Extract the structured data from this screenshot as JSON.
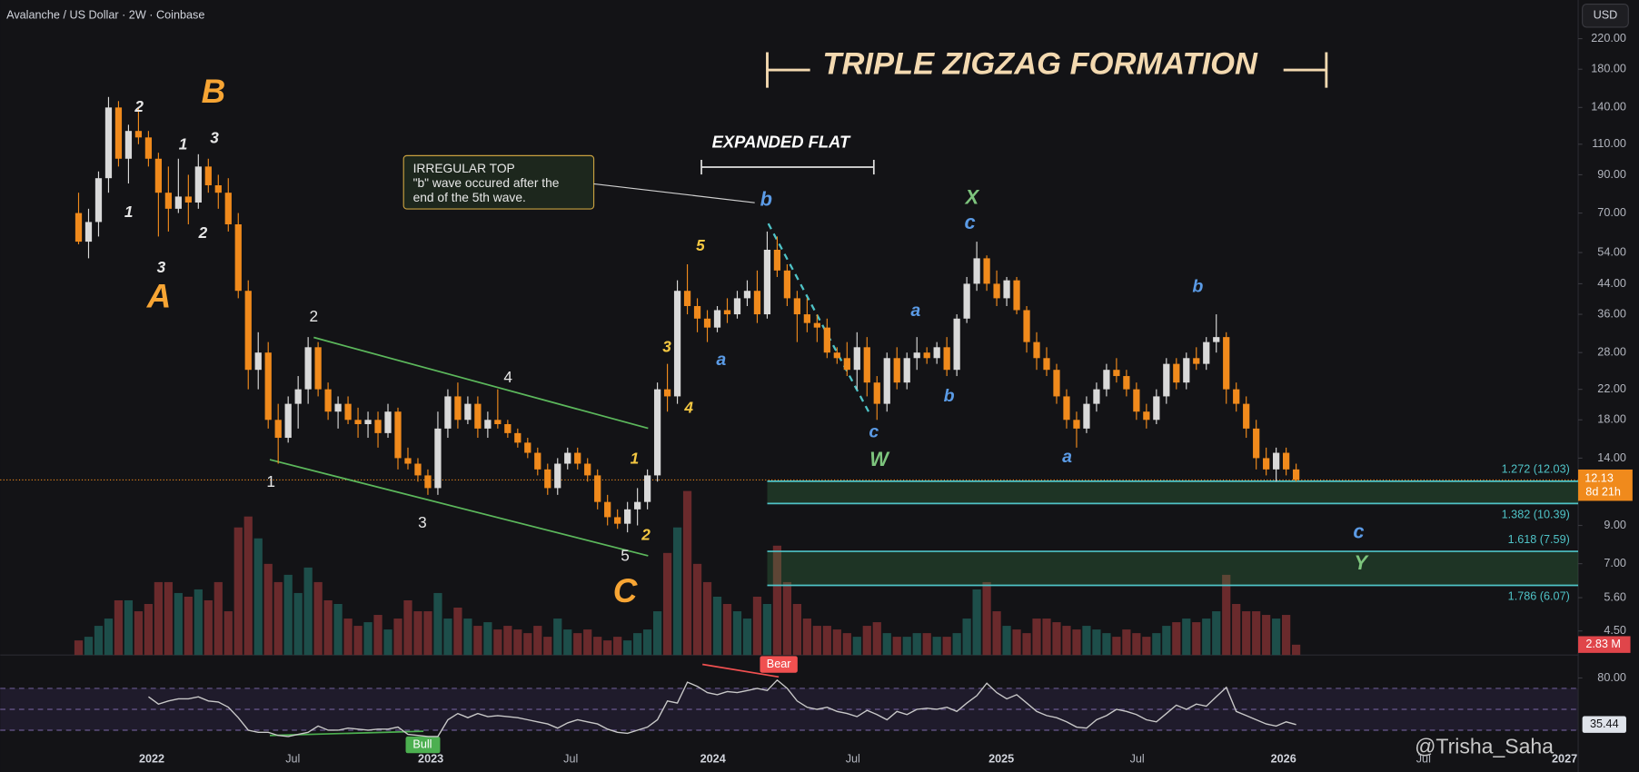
{
  "chart_data": {
    "type": "candlestick",
    "header": "Avalanche / US Dollar · 2W · Coinbase",
    "currency": "USD",
    "title": "TRIPLE ZIGZAG FORMATION",
    "subtitle": "EXPANDED FLAT",
    "note": [
      "IRREGULAR TOP",
      "\"b\" wave occured after the",
      "end of the 5th wave."
    ],
    "log": true,
    "up_color": "#d9d9d9",
    "down_color": "#f08a1c",
    "ylim": [
      4.5,
      220
    ],
    "yticks": [
      {
        "value": 220,
        "label": "220.00"
      },
      {
        "value": 180,
        "label": "180.00"
      },
      {
        "value": 140,
        "label": "140.00"
      },
      {
        "value": 110,
        "label": "110.00"
      },
      {
        "value": 90,
        "label": "90.00"
      },
      {
        "value": 70,
        "label": "70.00"
      },
      {
        "value": 54,
        "label": "54.00"
      },
      {
        "value": 44,
        "label": "44.00"
      },
      {
        "value": 36,
        "label": "36.00"
      },
      {
        "value": 28,
        "label": "28.00"
      },
      {
        "value": 22,
        "label": "22.00"
      },
      {
        "value": 18,
        "label": "18.00"
      },
      {
        "value": 14,
        "label": "14.00"
      },
      {
        "value": 9,
        "label": "9.00"
      },
      {
        "value": 7,
        "label": "7.00"
      },
      {
        "value": 5.6,
        "label": "5.60"
      },
      {
        "value": 4.5,
        "label": "4.50"
      }
    ],
    "candles": [
      [
        70,
        80,
        57,
        58
      ],
      [
        58,
        72,
        52,
        66
      ],
      [
        66,
        92,
        60,
        88
      ],
      [
        88,
        150,
        80,
        140
      ],
      [
        140,
        146,
        95,
        100
      ],
      [
        100,
        125,
        85,
        120
      ],
      [
        120,
        140,
        110,
        115
      ],
      [
        115,
        120,
        95,
        100
      ],
      [
        100,
        104,
        60,
        80
      ],
      [
        80,
        95,
        62,
        72
      ],
      [
        72,
        100,
        70,
        78
      ],
      [
        78,
        90,
        65,
        75
      ],
      [
        75,
        103,
        72,
        95
      ],
      [
        95,
        100,
        80,
        84
      ],
      [
        84,
        90,
        72,
        80
      ],
      [
        80,
        88,
        62,
        65
      ],
      [
        65,
        70,
        40,
        42
      ],
      [
        42,
        45,
        22,
        25
      ],
      [
        25,
        32,
        22,
        28
      ],
      [
        28,
        30,
        17,
        18
      ],
      [
        18,
        20,
        13.5,
        16
      ],
      [
        16,
        21,
        15.5,
        20
      ],
      [
        20,
        24,
        17,
        22
      ],
      [
        22,
        31,
        20,
        29
      ],
      [
        29,
        30,
        21,
        22
      ],
      [
        22,
        23,
        18,
        19
      ],
      [
        19,
        21,
        17,
        20
      ],
      [
        20,
        21,
        17.5,
        18
      ],
      [
        18,
        19.5,
        16,
        17.5
      ],
      [
        17.5,
        19,
        16,
        18
      ],
      [
        18,
        19,
        15,
        16.5
      ],
      [
        16.5,
        20,
        16,
        19
      ],
      [
        19,
        19.5,
        13,
        14
      ],
      [
        14,
        15,
        13,
        13.5
      ],
      [
        13.5,
        14,
        12,
        12.5
      ],
      [
        12.5,
        13,
        11,
        11.5
      ],
      [
        11.5,
        19,
        11,
        17
      ],
      [
        17,
        22,
        16,
        21
      ],
      [
        21,
        23,
        17,
        18
      ],
      [
        18,
        21,
        17.5,
        20
      ],
      [
        20,
        21,
        16,
        17
      ],
      [
        17,
        19,
        16,
        18
      ],
      [
        18,
        22,
        17,
        17.5
      ],
      [
        17.5,
        18,
        16,
        16.5
      ],
      [
        16.5,
        17,
        15,
        15.5
      ],
      [
        15.5,
        16,
        14,
        14.5
      ],
      [
        14.5,
        15,
        12.5,
        13
      ],
      [
        13,
        13.5,
        11,
        11.5
      ],
      [
        11.5,
        14,
        11,
        13.5
      ],
      [
        13.5,
        15,
        13,
        14.5
      ],
      [
        14.5,
        15,
        13,
        13.5
      ],
      [
        13.5,
        14,
        12,
        12.5
      ],
      [
        12.5,
        13,
        10,
        10.5
      ],
      [
        10.5,
        11,
        9,
        9.5
      ],
      [
        9.5,
        10,
        8.8,
        9.1
      ],
      [
        9.1,
        10.5,
        8.6,
        10
      ],
      [
        10,
        11.5,
        9,
        10.5
      ],
      [
        10.5,
        13,
        10,
        12.5
      ],
      [
        12.5,
        23,
        12,
        22
      ],
      [
        22,
        26,
        19,
        21
      ],
      [
        21,
        45,
        20,
        42
      ],
      [
        42,
        50,
        36,
        38
      ],
      [
        38,
        40,
        32,
        35
      ],
      [
        35,
        37,
        30,
        33
      ],
      [
        33,
        38,
        32,
        37
      ],
      [
        37,
        40,
        34,
        36
      ],
      [
        36,
        42,
        35,
        40
      ],
      [
        40,
        45,
        38,
        42
      ],
      [
        42,
        48,
        34,
        36
      ],
      [
        36,
        62,
        35,
        55
      ],
      [
        55,
        60,
        46,
        48
      ],
      [
        48,
        50,
        38,
        40
      ],
      [
        40,
        42,
        30,
        36
      ],
      [
        36,
        40,
        32,
        34
      ],
      [
        34,
        36,
        30,
        33
      ],
      [
        33,
        35,
        27,
        28
      ],
      [
        28,
        29,
        26,
        27
      ],
      [
        27,
        30,
        24,
        25
      ],
      [
        25,
        32,
        22,
        29
      ],
      [
        29,
        31,
        21,
        23
      ],
      [
        23,
        24,
        18,
        20
      ],
      [
        20,
        28,
        19,
        27
      ],
      [
        27,
        29,
        22,
        23
      ],
      [
        23,
        28,
        22,
        27
      ],
      [
        27,
        31,
        25,
        28
      ],
      [
        28,
        29,
        26,
        27
      ],
      [
        27,
        30,
        26,
        29
      ],
      [
        29,
        31,
        24,
        25
      ],
      [
        25,
        36,
        24,
        35
      ],
      [
        35,
        46,
        34,
        44
      ],
      [
        44,
        58,
        42,
        52
      ],
      [
        52,
        53,
        42,
        44
      ],
      [
        44,
        48,
        38,
        40
      ],
      [
        40,
        46,
        38,
        45
      ],
      [
        45,
        46,
        36,
        37
      ],
      [
        37,
        38,
        28,
        30
      ],
      [
        30,
        32,
        25,
        27
      ],
      [
        27,
        29,
        24,
        25
      ],
      [
        25,
        26,
        20,
        21
      ],
      [
        21,
        22,
        17,
        18
      ],
      [
        18,
        19,
        15,
        17
      ],
      [
        17,
        21,
        16.5,
        20
      ],
      [
        20,
        23,
        19,
        22
      ],
      [
        22,
        26,
        21,
        25
      ],
      [
        25,
        27,
        23,
        24
      ],
      [
        24,
        25,
        21,
        22
      ],
      [
        22,
        23,
        18,
        19
      ],
      [
        19,
        20,
        17,
        18
      ],
      [
        18,
        22,
        17.5,
        21
      ],
      [
        21,
        27,
        20,
        26
      ],
      [
        26,
        27,
        22,
        23
      ],
      [
        23,
        28,
        22,
        27
      ],
      [
        27,
        29,
        25,
        26
      ],
      [
        26,
        31,
        25,
        30
      ],
      [
        30,
        36,
        28,
        31
      ],
      [
        31,
        32,
        20,
        22
      ],
      [
        22,
        23,
        19,
        20
      ],
      [
        20,
        21,
        16,
        17
      ],
      [
        17,
        18,
        13,
        14
      ],
      [
        14,
        15,
        12.5,
        13
      ],
      [
        13,
        15,
        12,
        14.5
      ],
      [
        14.5,
        15,
        12.5,
        13
      ],
      [
        13,
        13.5,
        12,
        12.13
      ]
    ],
    "countdown": "8d 21h",
    "volume": [
      4,
      5,
      8,
      10,
      15,
      15,
      12,
      14,
      20,
      20,
      17,
      16,
      18,
      15,
      20,
      12,
      35,
      38,
      32,
      25,
      20,
      22,
      17,
      24,
      20,
      15,
      14,
      10,
      8,
      9,
      11,
      7,
      10,
      15,
      12,
      12,
      17,
      10,
      13,
      10,
      8,
      9,
      7,
      8,
      7,
      6,
      8,
      5,
      10,
      7,
      6,
      7,
      5,
      4,
      5,
      4,
      6,
      7,
      12,
      28,
      35,
      45,
      25,
      20,
      16,
      14,
      12,
      10,
      16,
      14,
      30,
      20,
      14,
      10,
      8,
      8,
      7,
      6,
      5,
      8,
      9,
      6,
      5,
      5,
      6,
      6,
      5,
      5,
      6,
      10,
      18,
      20,
      12,
      8,
      7,
      6,
      10,
      10,
      9,
      8,
      7,
      8,
      7,
      6,
      5,
      7,
      6,
      5,
      6,
      8,
      9,
      10,
      9,
      10,
      12,
      22,
      14,
      12,
      12,
      11,
      10,
      11,
      2.83
    ],
    "volume_label": "2.83 M",
    "volume_lim": [
      0,
      45
    ],
    "up_volume_color": "#1d4e4a",
    "down_volume_color": "#6a2a2c",
    "fib": [
      {
        "label": "1.272 (12.03)",
        "value": 12.03
      },
      {
        "label": "1.382 (10.39)",
        "value": 10.39
      },
      {
        "label": "1.618 (7.59)",
        "value": 7.59
      },
      {
        "label": "1.786 (6.07)",
        "value": 6.07
      }
    ],
    "wave_labels": [
      {
        "text": "B",
        "color": "#f7a534"
      },
      {
        "text": "A",
        "color": "#f7a534"
      },
      {
        "text": "C",
        "color": "#f7a534"
      },
      {
        "text": "2",
        "color": "#e6e6e6"
      },
      {
        "text": "1",
        "color": "#e6e6e6"
      },
      {
        "text": "3",
        "color": "#e6e6e6"
      },
      {
        "text": "1",
        "color": "#e6e6e6"
      },
      {
        "text": "3",
        "color": "#e6e6e6"
      },
      {
        "text": "2",
        "color": "#e6e6e6"
      },
      {
        "text": "2",
        "color": "#e6e6e6"
      },
      {
        "text": "4",
        "color": "#e6e6e6"
      },
      {
        "text": "1",
        "color": "#e6e6e6"
      },
      {
        "text": "3",
        "color": "#e6e6e6"
      },
      {
        "text": "5",
        "color": "#e6e6e6"
      },
      {
        "text": "5",
        "color": "#f5c842"
      },
      {
        "text": "3",
        "color": "#f5c842"
      },
      {
        "text": "4",
        "color": "#f5c842"
      },
      {
        "text": "1",
        "color": "#f5c842"
      },
      {
        "text": "2",
        "color": "#f5c842"
      },
      {
        "text": "a",
        "color": "#5b9be6"
      },
      {
        "text": "b",
        "color": "#5b9be6"
      },
      {
        "text": "c",
        "color": "#5b9be6"
      },
      {
        "text": "a",
        "color": "#5b9be6"
      },
      {
        "text": "b",
        "color": "#5b9be6"
      },
      {
        "text": "c",
        "color": "#5b9be6"
      },
      {
        "text": "a",
        "color": "#5b9be6"
      },
      {
        "text": "b",
        "color": "#5b9be6"
      },
      {
        "text": "c",
        "color": "#5b9be6"
      },
      {
        "text": "W",
        "color": "#7dc47d"
      },
      {
        "text": "X",
        "color": "#7dc47d"
      },
      {
        "text": "Y",
        "color": "#7dc47d"
      }
    ],
    "rsi": [
      null,
      null,
      null,
      null,
      null,
      null,
      null,
      62,
      55,
      58,
      60,
      60,
      62,
      58,
      57,
      52,
      42,
      30,
      28,
      28,
      25,
      24,
      26,
      28,
      34,
      30,
      30,
      32,
      31,
      30,
      31,
      31,
      33,
      26,
      25,
      24,
      24,
      40,
      46,
      42,
      46,
      43,
      44,
      43,
      42,
      40,
      38,
      36,
      32,
      37,
      40,
      38,
      36,
      31,
      28,
      27,
      30,
      33,
      40,
      58,
      56,
      76,
      72,
      66,
      64,
      67,
      66,
      68,
      70,
      68,
      78,
      70,
      58,
      52,
      50,
      52,
      48,
      46,
      43,
      49,
      45,
      40,
      48,
      45,
      50,
      51,
      50,
      52,
      48,
      56,
      63,
      75,
      66,
      60,
      64,
      56,
      48,
      44,
      42,
      38,
      33,
      32,
      40,
      44,
      50,
      48,
      45,
      40,
      38,
      46,
      54,
      50,
      55,
      53,
      62,
      71,
      48,
      44,
      40,
      36,
      34,
      38,
      35.44
    ],
    "rsi_lim": [
      19,
      101
    ],
    "rsi_ticks": [
      {
        "value": 80,
        "label": "80.00"
      }
    ],
    "rsi_levels": [
      70,
      50,
      30
    ],
    "rsi_color": "#c8c8c8",
    "divergence_labels": [
      "Bear",
      "Bull"
    ],
    "time_labels": [
      "2022",
      "Jul",
      "2023",
      "Jul",
      "2024",
      "Jul",
      "2025",
      "Jul",
      "2026",
      "Jul",
      "2027"
    ],
    "watermark": "@Trisha_Saha"
  }
}
